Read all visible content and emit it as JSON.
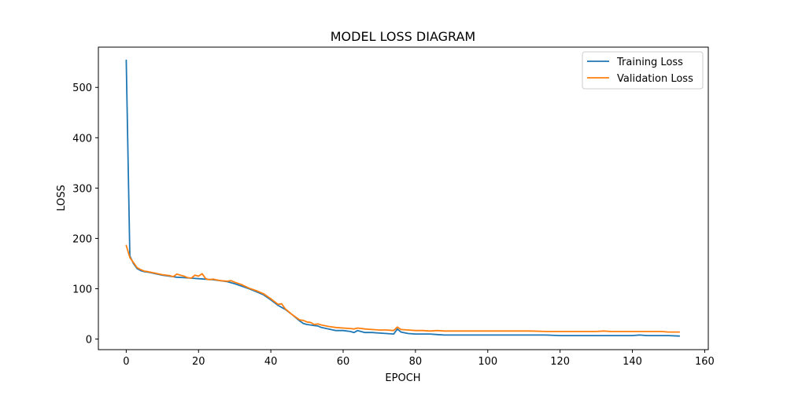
{
  "chart_data": {
    "type": "line",
    "title": "MODEL LOSS DIAGRAM",
    "xlabel": "EPOCH",
    "ylabel": "LOSS",
    "xlim": [
      -7.7,
      161
    ],
    "ylim": [
      -21,
      580
    ],
    "xticks": [
      0,
      20,
      40,
      60,
      80,
      100,
      120,
      140,
      160
    ],
    "yticks": [
      0,
      100,
      200,
      300,
      400,
      500
    ],
    "grid": false,
    "legend": "top-right",
    "colors": {
      "Training Loss": "#1f77b4",
      "Validation Loss": "#ff7f0e"
    },
    "series": [
      {
        "name": "Training Loss",
        "x": [
          0,
          1,
          2,
          3,
          4,
          5,
          6,
          8,
          10,
          12,
          14,
          16,
          18,
          20,
          22,
          24,
          26,
          28,
          30,
          32,
          34,
          36,
          38,
          40,
          42,
          44,
          46,
          48,
          49,
          50,
          51,
          52,
          53,
          54,
          56,
          58,
          60,
          62,
          63,
          64,
          66,
          68,
          70,
          72,
          74,
          75,
          76,
          78,
          80,
          82,
          84,
          86,
          88,
          90,
          92,
          95,
          98,
          100,
          104,
          108,
          110,
          112,
          116,
          120,
          124,
          128,
          130,
          132,
          134,
          136,
          138,
          140,
          142,
          144,
          145,
          146,
          148,
          150,
          153
        ],
        "y": [
          554,
          165,
          150,
          140,
          136,
          134,
          133,
          130,
          127,
          125,
          123,
          122,
          121,
          120,
          119,
          118,
          116,
          114,
          110,
          105,
          100,
          94,
          88,
          78,
          67,
          59,
          48,
          36,
          31,
          29,
          28,
          27,
          26,
          23,
          20,
          17,
          17,
          15,
          13,
          17,
          13,
          13,
          12,
          11,
          10,
          20,
          14,
          11,
          10,
          10,
          10,
          9,
          8,
          8,
          8,
          8,
          8,
          8,
          8,
          8,
          8,
          8,
          8,
          7,
          7,
          7,
          7,
          7,
          7,
          7,
          7,
          7,
          8,
          7,
          7,
          7,
          7,
          7,
          6
        ]
      },
      {
        "name": "Validation Loss",
        "x": [
          0,
          1,
          2,
          3,
          4,
          5,
          6,
          8,
          10,
          12,
          13,
          14,
          15,
          16,
          17,
          18,
          19,
          20,
          21,
          22,
          23,
          24,
          26,
          28,
          29,
          30,
          32,
          34,
          36,
          38,
          40,
          42,
          43,
          44,
          46,
          48,
          49,
          50,
          51,
          52,
          53,
          54,
          56,
          58,
          60,
          62,
          63,
          64,
          66,
          68,
          70,
          72,
          74,
          75,
          76,
          78,
          80,
          82,
          84,
          86,
          88,
          90,
          92,
          95,
          98,
          100,
          104,
          108,
          110,
          112,
          116,
          120,
          124,
          128,
          130,
          132,
          134,
          136,
          138,
          140,
          142,
          144,
          146,
          148,
          150,
          153
        ],
        "y": [
          186,
          162,
          152,
          142,
          138,
          135,
          134,
          131,
          128,
          126,
          124,
          129,
          127,
          125,
          122,
          121,
          127,
          125,
          130,
          120,
          118,
          119,
          116,
          115,
          116,
          113,
          108,
          101,
          96,
          90,
          80,
          69,
          70,
          60,
          48,
          38,
          37,
          34,
          33,
          29,
          30,
          28,
          25,
          23,
          22,
          21,
          20,
          22,
          20,
          19,
          18,
          18,
          17,
          24,
          19,
          18,
          17,
          17,
          16,
          17,
          16,
          16,
          16,
          16,
          16,
          16,
          16,
          16,
          16,
          16,
          15,
          15,
          15,
          15,
          15,
          16,
          15,
          15,
          15,
          15,
          15,
          15,
          15,
          15,
          14,
          14
        ]
      }
    ]
  }
}
